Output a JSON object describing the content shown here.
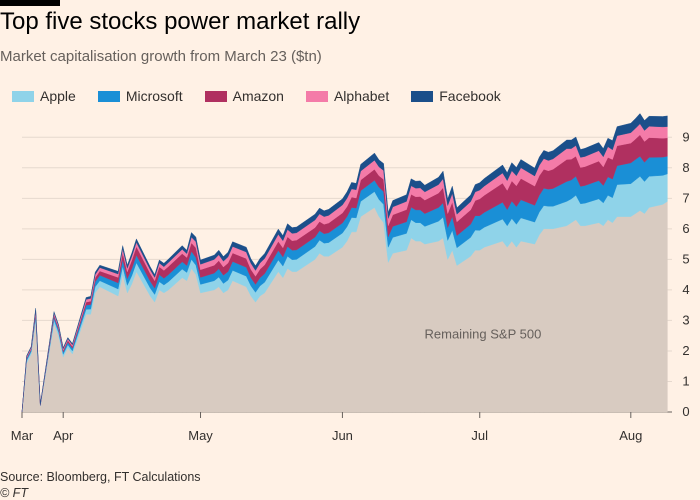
{
  "header": {
    "title": "Top five stocks power market rally",
    "subtitle": "Market capitalisation growth from March 23 ($tn)"
  },
  "footer": {
    "source": "Source: Bloomberg, FT Calculations",
    "credit": "© FT"
  },
  "colors": {
    "background": "#fff1e5",
    "remaining": "#d8cbc1",
    "apple": "#8fd3e9",
    "microsoft": "#1a8fd6",
    "amazon": "#b03060",
    "alphabet": "#f47ba8",
    "facebook": "#1b4f8a"
  },
  "chart_data": {
    "type": "area",
    "stacked": true,
    "title": "Top five stocks power market rally",
    "subtitle": "Market capitalisation growth from March 23 ($tn)",
    "ylim": [
      0,
      9.5
    ],
    "yticks": [
      0,
      1,
      2,
      3,
      4,
      5,
      6,
      7,
      8,
      9
    ],
    "xlim": [
      "2020-03-23",
      "2020-08-12"
    ],
    "xticks": [
      {
        "label": "Mar",
        "date": "2020-03-23"
      },
      {
        "label": "Apr",
        "date": "2020-04-01"
      },
      {
        "label": "May",
        "date": "2020-05-01"
      },
      {
        "label": "Jun",
        "date": "2020-06-01"
      },
      {
        "label": "Jul",
        "date": "2020-07-01"
      },
      {
        "label": "Aug",
        "date": "2020-08-03"
      }
    ],
    "legend_position": "top-left",
    "grid": "horizontal",
    "annotations": [
      {
        "text": "Remaining S&P 500",
        "date": "2020-06-15",
        "value": 2.4
      }
    ],
    "x": [
      "2020-03-23",
      "2020-03-24",
      "2020-03-25",
      "2020-03-26",
      "2020-03-27",
      "2020-03-30",
      "2020-03-31",
      "2020-04-01",
      "2020-04-02",
      "2020-04-03",
      "2020-04-06",
      "2020-04-07",
      "2020-04-08",
      "2020-04-09",
      "2020-04-13",
      "2020-04-14",
      "2020-04-15",
      "2020-04-16",
      "2020-04-17",
      "2020-04-20",
      "2020-04-21",
      "2020-04-22",
      "2020-04-23",
      "2020-04-24",
      "2020-04-27",
      "2020-04-28",
      "2020-04-29",
      "2020-04-30",
      "2020-05-01",
      "2020-05-04",
      "2020-05-05",
      "2020-05-06",
      "2020-05-07",
      "2020-05-08",
      "2020-05-11",
      "2020-05-12",
      "2020-05-13",
      "2020-05-14",
      "2020-05-15",
      "2020-05-18",
      "2020-05-19",
      "2020-05-20",
      "2020-05-21",
      "2020-05-22",
      "2020-05-26",
      "2020-05-27",
      "2020-05-28",
      "2020-05-29",
      "2020-06-01",
      "2020-06-02",
      "2020-06-03",
      "2020-06-04",
      "2020-06-05",
      "2020-06-08",
      "2020-06-09",
      "2020-06-10",
      "2020-06-11",
      "2020-06-12",
      "2020-06-15",
      "2020-06-16",
      "2020-06-17",
      "2020-06-18",
      "2020-06-19",
      "2020-06-22",
      "2020-06-23",
      "2020-06-24",
      "2020-06-25",
      "2020-06-26",
      "2020-06-29",
      "2020-06-30",
      "2020-07-01",
      "2020-07-02",
      "2020-07-06",
      "2020-07-07",
      "2020-07-08",
      "2020-07-09",
      "2020-07-10",
      "2020-07-13",
      "2020-07-14",
      "2020-07-15",
      "2020-07-16",
      "2020-07-17",
      "2020-07-20",
      "2020-07-21",
      "2020-07-22",
      "2020-07-23",
      "2020-07-24",
      "2020-07-27",
      "2020-07-28",
      "2020-07-29",
      "2020-07-30",
      "2020-07-31",
      "2020-08-03",
      "2020-08-04",
      "2020-08-05",
      "2020-08-06",
      "2020-08-07",
      "2020-08-10",
      "2020-08-11"
    ],
    "series": [
      {
        "name": "Remaining S&P 500",
        "values": [
          0.0,
          1.6,
          1.9,
          3.0,
          0.2,
          2.9,
          2.5,
          1.8,
          2.1,
          1.9,
          3.2,
          3.2,
          3.9,
          4.1,
          3.8,
          4.5,
          3.9,
          4.2,
          4.6,
          3.8,
          3.6,
          4.0,
          3.9,
          4.0,
          4.4,
          4.3,
          4.7,
          4.5,
          3.9,
          4.0,
          4.1,
          3.9,
          4.0,
          4.3,
          4.1,
          3.8,
          3.6,
          3.8,
          3.9,
          4.6,
          4.4,
          4.7,
          4.6,
          4.6,
          5.0,
          5.2,
          5.1,
          5.1,
          5.4,
          5.6,
          5.9,
          5.9,
          6.4,
          6.7,
          6.4,
          6.2,
          4.9,
          5.2,
          5.3,
          5.7,
          5.6,
          5.6,
          5.5,
          5.6,
          5.7,
          5.0,
          5.3,
          4.8,
          5.1,
          5.3,
          5.3,
          5.4,
          5.6,
          5.4,
          5.6,
          5.4,
          5.6,
          5.5,
          5.8,
          6.0,
          6.0,
          6.0,
          6.1,
          6.2,
          6.3,
          6.1,
          6.1,
          6.2,
          6.1,
          6.3,
          6.2,
          6.4,
          6.4,
          6.5,
          6.6,
          6.5,
          6.7,
          6.8,
          6.9
        ]
      },
      {
        "name": "Apple",
        "values": [
          0.0,
          0.08,
          0.08,
          0.12,
          0.01,
          0.12,
          0.11,
          0.09,
          0.1,
          0.1,
          0.16,
          0.17,
          0.2,
          0.2,
          0.23,
          0.27,
          0.25,
          0.27,
          0.29,
          0.26,
          0.25,
          0.27,
          0.26,
          0.27,
          0.28,
          0.27,
          0.3,
          0.31,
          0.28,
          0.3,
          0.32,
          0.31,
          0.32,
          0.34,
          0.35,
          0.33,
          0.32,
          0.33,
          0.35,
          0.38,
          0.38,
          0.4,
          0.39,
          0.4,
          0.42,
          0.43,
          0.43,
          0.45,
          0.46,
          0.47,
          0.47,
          0.46,
          0.5,
          0.52,
          0.56,
          0.6,
          0.5,
          0.52,
          0.55,
          0.6,
          0.6,
          0.6,
          0.58,
          0.65,
          0.68,
          0.62,
          0.65,
          0.58,
          0.62,
          0.66,
          0.65,
          0.65,
          0.72,
          0.7,
          0.74,
          0.75,
          0.76,
          0.72,
          0.75,
          0.76,
          0.74,
          0.74,
          0.8,
          0.78,
          0.8,
          0.72,
          0.74,
          0.78,
          0.75,
          0.8,
          0.82,
          1.05,
          1.08,
          1.1,
          1.12,
          1.05,
          1.02,
          0.95,
          0.9
        ]
      },
      {
        "name": "Microsoft",
        "values": [
          0.0,
          0.06,
          0.06,
          0.1,
          0.01,
          0.1,
          0.09,
          0.08,
          0.09,
          0.09,
          0.14,
          0.15,
          0.17,
          0.18,
          0.2,
          0.23,
          0.22,
          0.24,
          0.25,
          0.22,
          0.21,
          0.23,
          0.22,
          0.23,
          0.24,
          0.23,
          0.26,
          0.25,
          0.23,
          0.25,
          0.27,
          0.27,
          0.28,
          0.29,
          0.29,
          0.27,
          0.26,
          0.27,
          0.28,
          0.31,
          0.3,
          0.32,
          0.31,
          0.31,
          0.31,
          0.31,
          0.31,
          0.32,
          0.33,
          0.33,
          0.33,
          0.32,
          0.35,
          0.37,
          0.4,
          0.42,
          0.34,
          0.36,
          0.38,
          0.41,
          0.42,
          0.42,
          0.42,
          0.45,
          0.47,
          0.42,
          0.45,
          0.4,
          0.43,
          0.47,
          0.48,
          0.49,
          0.55,
          0.53,
          0.57,
          0.58,
          0.59,
          0.55,
          0.55,
          0.57,
          0.56,
          0.58,
          0.65,
          0.62,
          0.62,
          0.57,
          0.58,
          0.6,
          0.57,
          0.6,
          0.61,
          0.62,
          0.68,
          0.67,
          0.66,
          0.63,
          0.62,
          0.6,
          0.58
        ]
      },
      {
        "name": "Amazon",
        "values": [
          0.0,
          0.03,
          0.04,
          0.06,
          0.01,
          0.06,
          0.06,
          0.05,
          0.06,
          0.06,
          0.1,
          0.11,
          0.13,
          0.14,
          0.18,
          0.22,
          0.22,
          0.27,
          0.28,
          0.26,
          0.24,
          0.26,
          0.26,
          0.27,
          0.27,
          0.26,
          0.28,
          0.32,
          0.25,
          0.26,
          0.27,
          0.27,
          0.28,
          0.28,
          0.29,
          0.27,
          0.27,
          0.28,
          0.29,
          0.3,
          0.3,
          0.32,
          0.31,
          0.32,
          0.31,
          0.3,
          0.31,
          0.32,
          0.33,
          0.33,
          0.34,
          0.33,
          0.35,
          0.36,
          0.38,
          0.4,
          0.36,
          0.38,
          0.4,
          0.42,
          0.43,
          0.44,
          0.44,
          0.47,
          0.5,
          0.46,
          0.48,
          0.45,
          0.47,
          0.5,
          0.55,
          0.56,
          0.63,
          0.63,
          0.66,
          0.68,
          0.7,
          0.63,
          0.64,
          0.62,
          0.6,
          0.63,
          0.72,
          0.68,
          0.66,
          0.62,
          0.62,
          0.64,
          0.61,
          0.64,
          0.64,
          0.65,
          0.65,
          0.67,
          0.7,
          0.68,
          0.65,
          0.62,
          0.6
        ]
      },
      {
        "name": "Alphabet",
        "values": [
          0.0,
          0.04,
          0.04,
          0.07,
          0.01,
          0.06,
          0.06,
          0.05,
          0.05,
          0.05,
          0.09,
          0.09,
          0.1,
          0.11,
          0.11,
          0.13,
          0.12,
          0.13,
          0.14,
          0.12,
          0.11,
          0.12,
          0.12,
          0.13,
          0.14,
          0.13,
          0.19,
          0.2,
          0.18,
          0.19,
          0.19,
          0.19,
          0.2,
          0.21,
          0.21,
          0.2,
          0.19,
          0.2,
          0.21,
          0.23,
          0.23,
          0.24,
          0.24,
          0.24,
          0.25,
          0.25,
          0.25,
          0.25,
          0.26,
          0.27,
          0.27,
          0.27,
          0.29,
          0.3,
          0.29,
          0.29,
          0.24,
          0.26,
          0.27,
          0.28,
          0.28,
          0.28,
          0.27,
          0.28,
          0.29,
          0.26,
          0.28,
          0.25,
          0.27,
          0.28,
          0.29,
          0.3,
          0.33,
          0.32,
          0.33,
          0.33,
          0.35,
          0.33,
          0.34,
          0.35,
          0.34,
          0.34,
          0.36,
          0.35,
          0.35,
          0.33,
          0.33,
          0.34,
          0.33,
          0.35,
          0.32,
          0.33,
          0.34,
          0.35,
          0.36,
          0.36,
          0.37,
          0.37,
          0.37
        ]
      },
      {
        "name": "Facebook",
        "values": [
          0.0,
          0.03,
          0.03,
          0.05,
          0.01,
          0.05,
          0.04,
          0.04,
          0.04,
          0.04,
          0.06,
          0.07,
          0.08,
          0.08,
          0.09,
          0.1,
          0.1,
          0.11,
          0.11,
          0.1,
          0.09,
          0.1,
          0.11,
          0.11,
          0.12,
          0.11,
          0.15,
          0.15,
          0.14,
          0.14,
          0.15,
          0.15,
          0.15,
          0.16,
          0.16,
          0.15,
          0.15,
          0.15,
          0.16,
          0.17,
          0.17,
          0.19,
          0.19,
          0.19,
          0.19,
          0.19,
          0.19,
          0.2,
          0.2,
          0.21,
          0.21,
          0.21,
          0.22,
          0.23,
          0.23,
          0.23,
          0.2,
          0.21,
          0.22,
          0.23,
          0.23,
          0.23,
          0.22,
          0.24,
          0.25,
          0.22,
          0.24,
          0.21,
          0.22,
          0.24,
          0.24,
          0.25,
          0.26,
          0.26,
          0.27,
          0.27,
          0.27,
          0.26,
          0.27,
          0.27,
          0.27,
          0.27,
          0.28,
          0.28,
          0.28,
          0.26,
          0.27,
          0.27,
          0.27,
          0.28,
          0.3,
          0.3,
          0.31,
          0.32,
          0.34,
          0.33,
          0.33,
          0.34,
          0.35
        ]
      }
    ]
  }
}
